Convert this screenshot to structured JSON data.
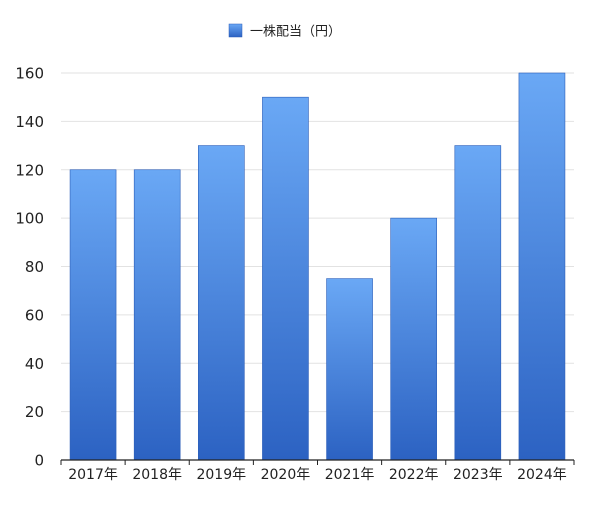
{
  "chart_data": {
    "type": "bar",
    "categories": [
      "2017年",
      "2018年",
      "2019年",
      "2020年",
      "2021年",
      "2022年",
      "2023年",
      "2024年"
    ],
    "series": [
      {
        "name": "一株配当（円）",
        "values": [
          120,
          120,
          130,
          150,
          75,
          100,
          130,
          160
        ]
      }
    ],
    "title": "",
    "xlabel": "",
    "ylabel": "",
    "ylim": [
      0,
      160
    ],
    "yticks": [
      0,
      20,
      40,
      60,
      80,
      100,
      120,
      140,
      160
    ],
    "grid": true,
    "legend_position": "top-center",
    "colors": {
      "bar_top": "#6aa8f5",
      "bar_bottom": "#2c62c2",
      "bar_edge": "#2a5db8",
      "grid": "#e2e2e2",
      "axis": "#222222"
    }
  }
}
